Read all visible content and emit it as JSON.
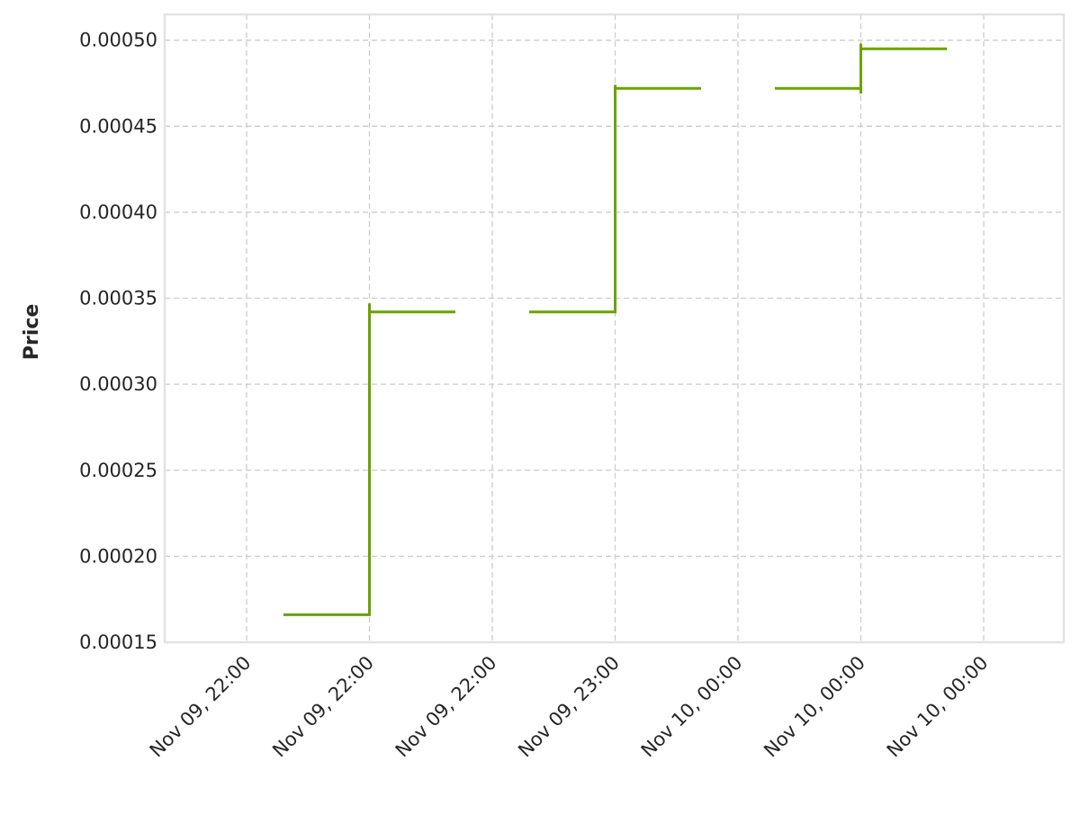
{
  "chart_data": {
    "type": "line",
    "step": true,
    "ylabel": "Price",
    "xlabel": "",
    "title": "",
    "ylim": [
      0.00015,
      0.000515
    ],
    "yticks": [
      0.00015,
      0.0002,
      0.00025,
      0.0003,
      0.00035,
      0.0004,
      0.00045,
      0.0005
    ],
    "ytick_labels": [
      "0.00015",
      "0.00020",
      "0.00025",
      "0.00030",
      "0.00035",
      "0.00040",
      "0.00045",
      "0.00050"
    ],
    "xtick_labels": [
      "Nov 09, 22:00",
      "Nov 09, 22:00",
      "Nov 09, 22:00",
      "Nov 09, 23:00",
      "Nov 10, 00:00",
      "Nov 10, 00:00",
      "Nov 10, 00:00"
    ],
    "grid": true,
    "color": "#6aa300",
    "segments": [
      {
        "x": [
          0.3,
          1.0,
          1.0,
          1.7
        ],
        "y": [
          0.000166,
          0.000166,
          0.000342,
          0.000342
        ]
      },
      {
        "x": [
          2.3,
          3.0,
          3.0,
          3.7
        ],
        "y": [
          0.000342,
          0.000342,
          0.000472,
          0.000472
        ]
      },
      {
        "x": [
          4.3,
          5.0,
          5.0,
          5.7
        ],
        "y": [
          0.000472,
          0.000472,
          0.000495,
          0.000495
        ]
      }
    ],
    "markers": [
      {
        "x": 1.0,
        "y": [
          0.000166,
          0.000347
        ]
      },
      {
        "x": 3.0,
        "y": [
          0.000342,
          0.000474
        ]
      },
      {
        "x": 5.0,
        "y": [
          0.000469,
          0.000498
        ]
      }
    ]
  }
}
